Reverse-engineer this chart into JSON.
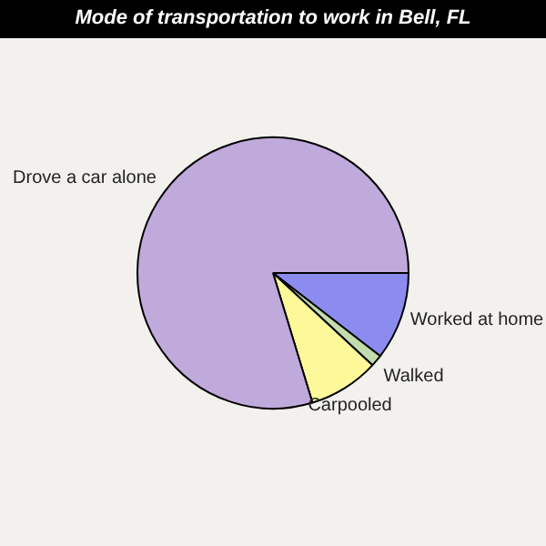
{
  "chart_data": {
    "type": "pie",
    "title": "Mode of transportation to work in Bell, FL",
    "categories": [
      "Worked at home",
      "Walked",
      "Carpooled",
      "Drove a car alone"
    ],
    "values": [
      10.5,
      1.4,
      8.4,
      79.7
    ],
    "colors": [
      "#8c8cf0",
      "#c2dcae",
      "#fdf89a",
      "#c0aadc"
    ],
    "legend": false
  }
}
